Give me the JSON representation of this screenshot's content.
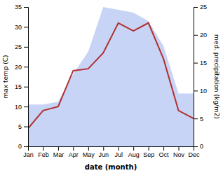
{
  "chart_data": {
    "type": "line",
    "xlabel": "date (month)",
    "ylabel": "max temp (C)",
    "y2label": "med. precipitation (kg/m2)",
    "categories": [
      "Jan",
      "Feb",
      "Mar",
      "Apr",
      "May",
      "Jun",
      "Jul",
      "Aug",
      "Sep",
      "Oct",
      "Nov",
      "Dec"
    ],
    "series": [
      {
        "type": "area",
        "axis": "y2",
        "color": "#c8d4f5",
        "values": [
          7.5,
          7.5,
          8.0,
          13.0,
          17.0,
          25.0,
          24.5,
          24.0,
          22.5,
          18.0,
          9.5,
          9.5
        ]
      },
      {
        "type": "line",
        "color": "#b03030",
        "values": [
          4.5,
          9.0,
          10.0,
          19.0,
          19.5,
          23.5,
          31.0,
          29.0,
          31.0,
          22.0,
          9.0,
          7.0
        ]
      }
    ],
    "ylim": [
      0,
      35
    ],
    "yticks": [
      0,
      5,
      10,
      15,
      20,
      25,
      30,
      35
    ],
    "y2lim": [
      0,
      25
    ],
    "y2ticks": [
      0,
      5,
      10,
      15,
      20,
      25
    ],
    "grid": false
  }
}
